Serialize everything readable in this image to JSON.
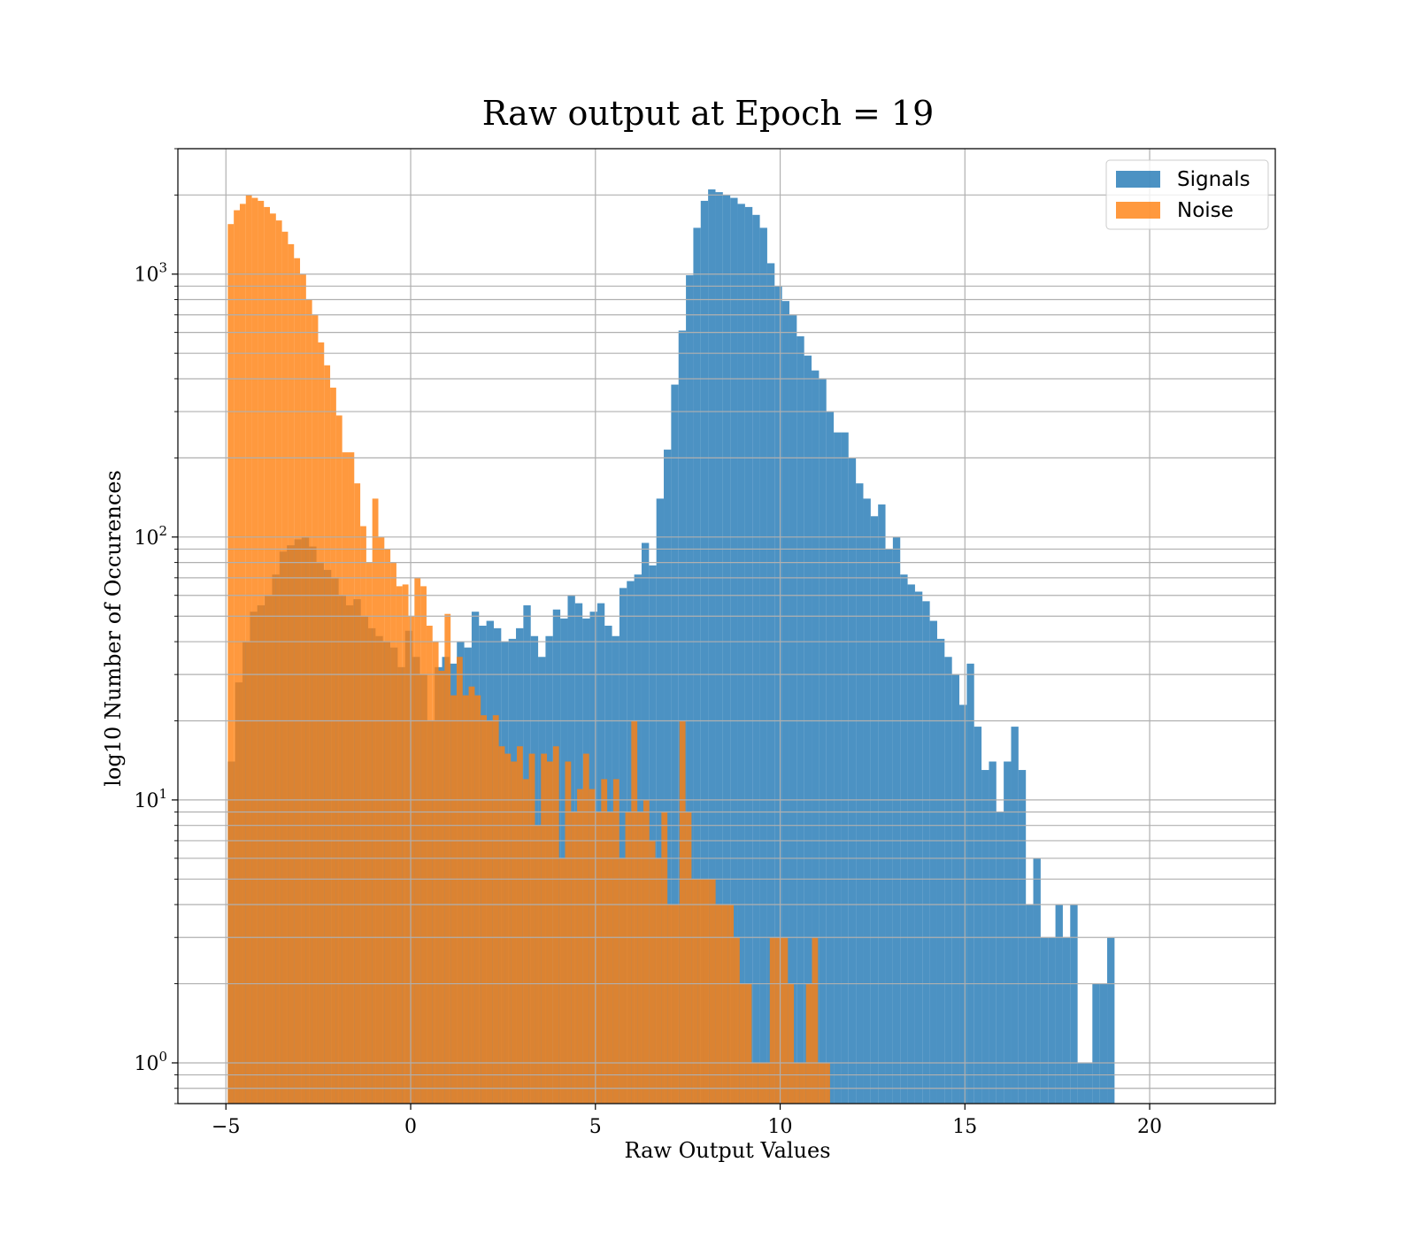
{
  "chart_data": {
    "type": "bar",
    "title": "Raw output at Epoch = 19",
    "xlabel": "Raw Output Values",
    "ylabel": "log10 Number of Occurences",
    "yscale": "log",
    "xlim": [
      -6.3,
      23.4
    ],
    "ylim": [
      0.7,
      3000
    ],
    "xticks": [
      -5,
      0,
      5,
      10,
      15,
      20
    ],
    "xtick_labels": [
      "−5",
      "0",
      "5",
      "10",
      "15",
      "20"
    ],
    "yticks": [
      1,
      10,
      100,
      1000
    ],
    "ytick_labels": [
      {
        "base": "10",
        "exp": "0"
      },
      {
        "base": "10",
        "exp": "1"
      },
      {
        "base": "10",
        "exp": "2"
      },
      {
        "base": "10",
        "exp": "3"
      }
    ],
    "grid": true,
    "legend_placement": "top-right",
    "series": [
      {
        "name": "Signals",
        "color": "#1f77b4",
        "opacity": 0.8,
        "bin_start": -4.95,
        "bin_width": 0.2,
        "values": [
          14,
          28,
          40,
          52,
          55,
          60,
          72,
          88,
          93,
          98,
          100,
          92,
          80,
          75,
          70,
          60,
          55,
          58,
          50,
          45,
          42,
          40,
          38,
          32,
          44,
          35,
          30,
          20,
          32,
          35,
          33,
          40,
          38,
          52,
          46,
          48,
          45,
          40,
          41,
          45,
          55,
          42,
          35,
          42,
          53,
          49,
          60,
          56,
          49,
          52,
          56,
          46,
          42,
          64,
          68,
          72,
          95,
          78,
          140,
          215,
          380,
          610,
          990,
          1500,
          1900,
          2100,
          2050,
          2000,
          1950,
          1850,
          1800,
          1680,
          1500,
          1100,
          900,
          790,
          700,
          580,
          490,
          430,
          400,
          300,
          250,
          250,
          200,
          160,
          140,
          120,
          133,
          90,
          100,
          72,
          66,
          62,
          57,
          48,
          41,
          35,
          30,
          23,
          33,
          19,
          13,
          14,
          9,
          14,
          19,
          13,
          4,
          6,
          3,
          3,
          4,
          3,
          4,
          1,
          1,
          2,
          2,
          3
        ]
      },
      {
        "name": "Noise",
        "color": "#ff7f0e",
        "opacity": 0.8,
        "bin_start": -4.95,
        "bin_width": 0.163,
        "values": [
          1550,
          1750,
          1850,
          2000,
          1950,
          1900,
          1800,
          1700,
          1600,
          1450,
          1300,
          1150,
          1000,
          800,
          700,
          550,
          450,
          370,
          290,
          210,
          210,
          160,
          110,
          80,
          140,
          100,
          90,
          80,
          65,
          66,
          50,
          70,
          65,
          46,
          40,
          31,
          51,
          25,
          35,
          25,
          27,
          25,
          21,
          20,
          21,
          16,
          15,
          14,
          16,
          12,
          15,
          8,
          15,
          14,
          16,
          6,
          14,
          9,
          11,
          15,
          11,
          9,
          12,
          9,
          12,
          6,
          9,
          20,
          9,
          10,
          7,
          6,
          9,
          4,
          4,
          20,
          9,
          5,
          5,
          5,
          5,
          4,
          4,
          4,
          3,
          2,
          2,
          1,
          1,
          1,
          3,
          3,
          3,
          2,
          1,
          1,
          2,
          3,
          1,
          1
        ]
      }
    ]
  }
}
